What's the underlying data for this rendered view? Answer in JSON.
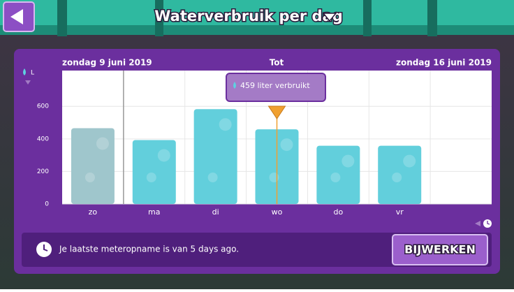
{
  "header": {
    "title": "Waterverbruik per dag"
  },
  "range": {
    "start": "zondag 9 juni 2019",
    "middle": "Tot",
    "end": "zondag 16 juni 2019"
  },
  "tooltip": "459 liter verbruikt",
  "footer": {
    "message": "Je laatste meteropname is van 5 days ago.",
    "button": "BIJWERKEN"
  },
  "chart_data": {
    "type": "bar",
    "y_label": "L",
    "categories": [
      "zo",
      "ma",
      "di",
      "wo",
      "do",
      "vr"
    ],
    "values": [
      466,
      393,
      583,
      459,
      358,
      358
    ],
    "colors": [
      "#9fc6cc",
      "#62cfdc",
      "#62cfdc",
      "#62cfdc",
      "#62cfdc",
      "#62cfdc"
    ],
    "ylim": [
      0,
      820
    ],
    "yticks": [
      0,
      200,
      400,
      600
    ],
    "grid": true
  }
}
